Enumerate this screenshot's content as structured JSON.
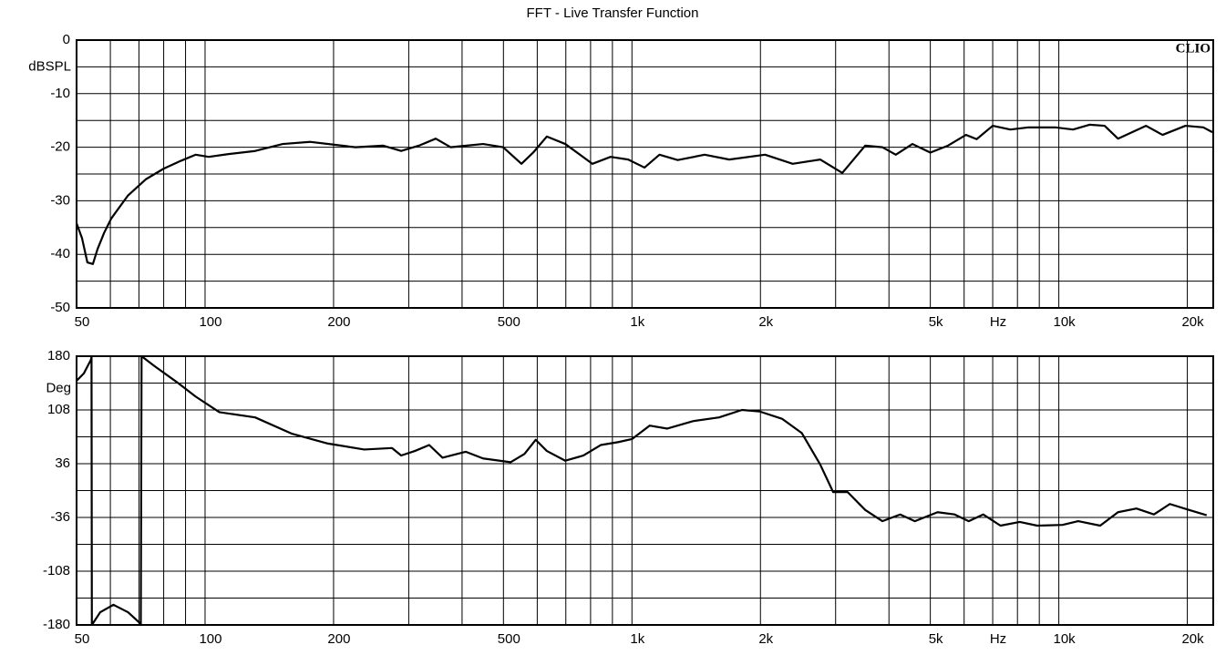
{
  "chart_data": [
    {
      "type": "line",
      "title": "FFT - Live Transfer Function",
      "ylabel": "dBSPL",
      "xlabel": "Hz",
      "annotation": "CLIO",
      "log_x": true,
      "grid": true,
      "color": "#000000",
      "xlim": [
        50,
        23000
      ],
      "ylim": [
        -50,
        0
      ],
      "xticks": [
        50,
        100,
        200,
        500,
        {
          "value": 1000,
          "label": "1k"
        },
        {
          "value": 2000,
          "label": "2k"
        },
        {
          "value": 5000,
          "label": "5k"
        },
        {
          "value": 10000,
          "label": "10k"
        },
        {
          "value": 20000,
          "label": "20k"
        }
      ],
      "xminor": [
        60,
        70,
        80,
        90,
        300,
        400,
        600,
        700,
        800,
        900,
        3000,
        4000,
        6000,
        7000,
        8000,
        9000
      ],
      "yticks": [
        0,
        -10,
        -20,
        -30,
        -40,
        -50
      ],
      "yminor": [
        -5,
        -15,
        -25,
        -35,
        -45
      ],
      "x": [
        50,
        51.5,
        53,
        54.6,
        56,
        58,
        60.3,
        66,
        72.6,
        80,
        88,
        95,
        102,
        113,
        131,
        152,
        176,
        204,
        225,
        261,
        288,
        317,
        347,
        376,
        448,
        499,
        551,
        587,
        632,
        698,
        808,
        891,
        980,
        1070,
        1160,
        1280,
        1480,
        1690,
        2050,
        2380,
        2760,
        3110,
        3520,
        3860,
        4150,
        4540,
        5000,
        5500,
        6060,
        6420,
        7000,
        7700,
        8490,
        9810,
        10800,
        11800,
        12800,
        13760,
        16000,
        17500,
        19800,
        21800,
        22900
      ],
      "values": [
        -34.2,
        -37,
        -41.5,
        -41.8,
        -39,
        -36,
        -33.3,
        -29,
        -26,
        -24,
        -22.5,
        -21.4,
        -21.8,
        -21.3,
        -20.7,
        -19.4,
        -19,
        -19.6,
        -20,
        -19.7,
        -20.7,
        -19.7,
        -18.4,
        -20,
        -19.4,
        -20,
        -23.1,
        -21,
        -18,
        -19.4,
        -23.1,
        -21.8,
        -22.3,
        -23.8,
        -21.4,
        -22.4,
        -21.4,
        -22.3,
        -21.4,
        -23.1,
        -22.3,
        -24.8,
        -19.7,
        -20,
        -21.4,
        -19.4,
        -21,
        -19.7,
        -17.7,
        -18.5,
        -16,
        -16.7,
        -16.3,
        -16.3,
        -16.7,
        -15.8,
        -16,
        -18.4,
        -16,
        -17.7,
        -16,
        -16.3,
        -17.2
      ]
    },
    {
      "type": "line",
      "ylabel": "Deg",
      "xlabel": "Hz",
      "log_x": true,
      "grid": true,
      "color": "#000000",
      "xlim": [
        50,
        23000
      ],
      "ylim": [
        -180,
        180
      ],
      "xticks": [
        50,
        100,
        200,
        500,
        {
          "value": 1000,
          "label": "1k"
        },
        {
          "value": 2000,
          "label": "2k"
        },
        {
          "value": 5000,
          "label": "5k"
        },
        {
          "value": 10000,
          "label": "10k"
        },
        {
          "value": 20000,
          "label": "20k"
        }
      ],
      "xminor": [
        60,
        70,
        80,
        90,
        300,
        400,
        600,
        700,
        800,
        900,
        3000,
        4000,
        6000,
        7000,
        8000,
        9000
      ],
      "yticks": [
        180,
        108,
        36,
        -36,
        -108,
        -180
      ],
      "yminor": [
        144,
        72,
        0,
        -72,
        -144
      ],
      "x": [
        50,
        52,
        54,
        54.2,
        54.3,
        56.8,
        61,
        66,
        70.5,
        70.7,
        71,
        76,
        86,
        95,
        108,
        131,
        160,
        194,
        236,
        274,
        288,
        310,
        335,
        360,
        408,
        448,
        520,
        560,
        595,
        632,
        698,
        770,
        845,
        930,
        1000,
        1100,
        1210,
        1390,
        1600,
        1810,
        1990,
        2250,
        2500,
        2760,
        2960,
        3200,
        3520,
        3860,
        4250,
        4600,
        5200,
        5700,
        6150,
        6650,
        7300,
        8100,
        8900,
        10200,
        11100,
        12500,
        13760,
        15200,
        16700,
        18200,
        20200,
        22200
      ],
      "values": [
        147,
        157,
        175,
        179,
        -180,
        -163,
        -153,
        -163,
        -178,
        -180,
        180,
        167,
        145,
        126,
        105,
        98,
        76,
        63,
        55,
        57,
        47,
        53,
        61,
        44,
        52,
        43,
        38,
        49,
        68,
        53,
        40,
        47,
        61,
        65,
        69,
        87,
        83,
        93,
        98,
        108,
        106,
        96,
        77,
        35,
        -2,
        -2,
        -26,
        -41,
        -32,
        -41,
        -29,
        -32,
        -41,
        -32,
        -47,
        -42,
        -47,
        -46,
        -41,
        -47,
        -29,
        -24,
        -32,
        -18,
        -26,
        -33
      ]
    }
  ]
}
